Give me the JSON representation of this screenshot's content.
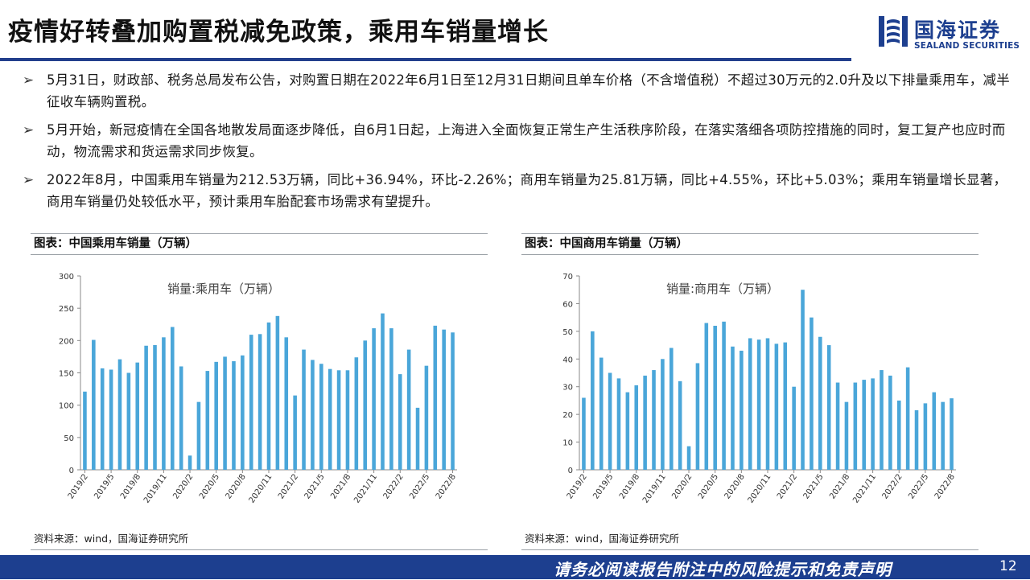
{
  "header": {
    "title": "疫情好转叠加购置税减免政策，乘用车销量增长",
    "logo_cn": "国海证券",
    "logo_en": "SEALAND SECURITIES"
  },
  "bullets": [
    "5月31日，财政部、税务总局发布公告，对购置日期在2022年6月1日至12月31日期间且单车价格（不含增值税）不超过30万元的2.0升及以下排量乘用车，减半征收车辆购置税。",
    "5月开始，新冠疫情在全国各地散发局面逐步降低，自6月1日起，上海进入全面恢复正常生产生活秩序阶段，在落实落细各项防控措施的同时，复工复产也应时而动，物流需求和货运需求同步恢复。",
    "2022年8月，中国乘用车销量为212.53万辆，同比+36.94%，环比-2.26%；商用车销量为25.81万辆，同比+4.55%，环比+5.03%；乘用车销量增长显著，商用车销量仍处较低水平，预计乘用车胎配套市场需求有望提升。"
  ],
  "panels": [
    {
      "title": "图表：中国乘用车销量（万辆）",
      "source": "资料来源：wind，国海证券研究所"
    },
    {
      "title": "图表：中国商用车销量（万辆）",
      "source": "资料来源：wind，国海证券研究所"
    }
  ],
  "footer": {
    "disclaimer": "请务必阅读报告附注中的风险提示和免责声明",
    "page": "12"
  },
  "colors": {
    "bar": "#4aa6d9",
    "brand": "#1d3f8f"
  },
  "chart_data": [
    {
      "type": "bar",
      "categories": [
        "2019/2",
        "2019/3",
        "2019/4",
        "2019/5",
        "2019/6",
        "2019/7",
        "2019/8",
        "2019/9",
        "2019/10",
        "2019/11",
        "2019/12",
        "2020/1",
        "2020/2",
        "2020/3",
        "2020/4",
        "2020/5",
        "2020/6",
        "2020/7",
        "2020/8",
        "2020/9",
        "2020/10",
        "2020/11",
        "2020/12",
        "2021/1",
        "2021/2",
        "2021/3",
        "2021/4",
        "2021/5",
        "2021/6",
        "2021/7",
        "2021/8",
        "2021/9",
        "2021/10",
        "2021/11",
        "2021/12",
        "2022/1",
        "2022/2",
        "2022/3",
        "2022/4",
        "2022/5",
        "2022/6",
        "2022/7",
        "2022/8"
      ],
      "tick_labels": [
        "2019/2",
        "2019/5",
        "2019/8",
        "2019/11",
        "2020/2",
        "2020/5",
        "2020/8",
        "2020/11",
        "2021/2",
        "2021/5",
        "2021/8",
        "2021/11",
        "2022/2",
        "2022/5",
        "2022/8"
      ],
      "series": [
        {
          "name": "销量:乘用车（万辆）",
          "values": [
            121,
            201,
            157,
            155,
            171,
            150,
            166,
            192,
            193,
            205,
            221,
            160,
            22,
            105,
            153,
            167,
            175,
            168,
            177,
            209,
            210,
            228,
            238,
            205,
            115,
            186,
            170,
            164,
            156,
            154,
            154,
            174,
            200,
            219,
            242,
            219,
            148,
            186,
            96,
            161,
            223,
            217,
            212.53
          ]
        }
      ],
      "ylim": [
        0,
        300
      ],
      "yticks": [
        0,
        50,
        100,
        150,
        200,
        250,
        300
      ],
      "legend": "top-left",
      "grid": false
    },
    {
      "type": "bar",
      "categories": [
        "2019/2",
        "2019/3",
        "2019/4",
        "2019/5",
        "2019/6",
        "2019/7",
        "2019/8",
        "2019/9",
        "2019/10",
        "2019/11",
        "2019/12",
        "2020/1",
        "2020/2",
        "2020/3",
        "2020/4",
        "2020/5",
        "2020/6",
        "2020/7",
        "2020/8",
        "2020/9",
        "2020/10",
        "2020/11",
        "2020/12",
        "2021/1",
        "2021/2",
        "2021/3",
        "2021/4",
        "2021/5",
        "2021/6",
        "2021/7",
        "2021/8",
        "2021/9",
        "2021/10",
        "2021/11",
        "2021/12",
        "2022/1",
        "2022/2",
        "2022/3",
        "2022/4",
        "2022/5",
        "2022/6",
        "2022/7",
        "2022/8"
      ],
      "tick_labels": [
        "2019/2",
        "2019/5",
        "2019/8",
        "2019/11",
        "2020/2",
        "2020/5",
        "2020/8",
        "2020/11",
        "2021/2",
        "2021/5",
        "2021/8",
        "2021/11",
        "2022/2",
        "2022/5",
        "2022/8"
      ],
      "series": [
        {
          "name": "销量:商用车（万辆）",
          "values": [
            26,
            50,
            40.5,
            35,
            33,
            28,
            30.5,
            34,
            36,
            40,
            44,
            32,
            8.5,
            38.5,
            53,
            52,
            53.5,
            44.5,
            43,
            47.5,
            47,
            47.5,
            45.5,
            46,
            30,
            65,
            55,
            48,
            45,
            31.5,
            24.5,
            31.5,
            32.5,
            33,
            36,
            34,
            25,
            37,
            21.5,
            24,
            28,
            24.5,
            25.81
          ]
        }
      ],
      "ylim": [
        0,
        70
      ],
      "yticks": [
        0,
        10,
        20,
        30,
        40,
        50,
        60,
        70
      ],
      "legend": "top-left",
      "grid": false
    }
  ]
}
